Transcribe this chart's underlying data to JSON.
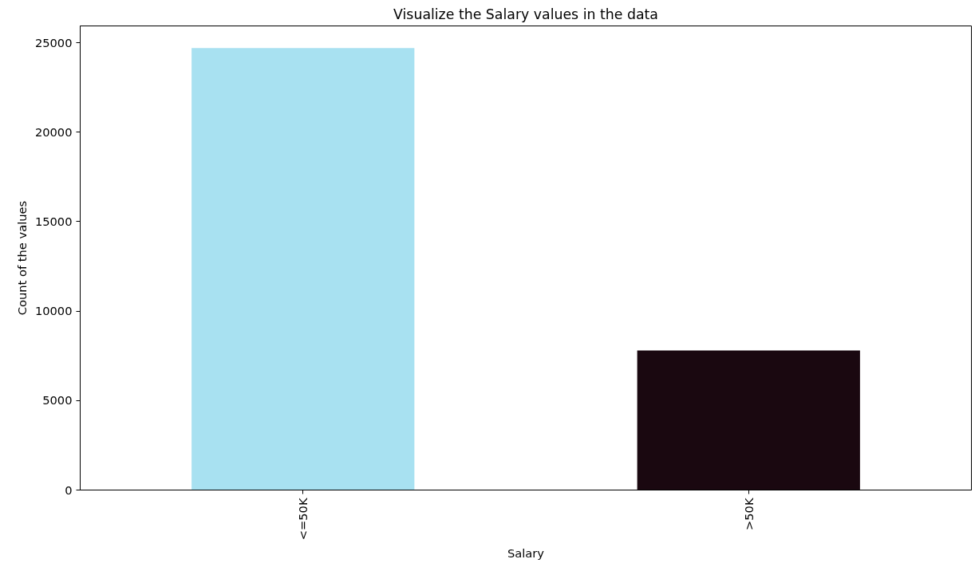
{
  "chart_data": {
    "type": "bar",
    "title": "Visualize the Salary values in the data",
    "xlabel": "Salary",
    "ylabel": "Count of the values",
    "categories": [
      "<=50K",
      ">50K"
    ],
    "values": [
      24700,
      7800
    ],
    "colors": [
      "#a8e1f1",
      "#1a0810"
    ],
    "ylim": [
      0,
      25940
    ],
    "yticks": [
      0,
      5000,
      10000,
      15000,
      20000,
      25000
    ],
    "grid": false
  }
}
